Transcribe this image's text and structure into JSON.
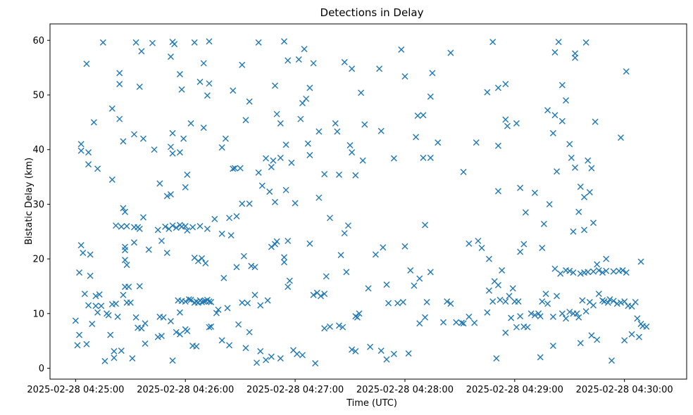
{
  "chart_data": {
    "type": "scatter",
    "title": "Detections in Delay",
    "xlabel": "Time (UTC)",
    "ylabel": "Bistatic Delay (km)",
    "marker": "x",
    "marker_color": "#1f77b4",
    "x_unit": "seconds since 2025-02-28 04:25:00",
    "xlim": [
      -14,
      334
    ],
    "ylim": [
      -2,
      63
    ],
    "xticks": [
      {
        "value": 0,
        "label": "2025-02-28 04:25:00"
      },
      {
        "value": 60,
        "label": "2025-02-28 04:26:00"
      },
      {
        "value": 120,
        "label": "2025-02-28 04:27:00"
      },
      {
        "value": 180,
        "label": "2025-02-28 04:28:00"
      },
      {
        "value": 240,
        "label": "2025-02-28 04:29:00"
      },
      {
        "value": 300,
        "label": "2025-02-28 04:30:00"
      }
    ],
    "yticks": [
      {
        "value": 0,
        "label": "0"
      },
      {
        "value": 10,
        "label": "10"
      },
      {
        "value": 20,
        "label": "20"
      },
      {
        "value": 30,
        "label": "30"
      },
      {
        "value": 40,
        "label": "40"
      },
      {
        "value": 50,
        "label": "50"
      },
      {
        "value": 60,
        "label": "60"
      }
    ],
    "grid": false,
    "points": [
      [
        15,
        59.6
      ],
      [
        33,
        59.6
      ],
      [
        42,
        59.5
      ],
      [
        53,
        59.7
      ],
      [
        65,
        59.6
      ],
      [
        73,
        59.8
      ],
      [
        100,
        59.6
      ],
      [
        114,
        59.8
      ],
      [
        228,
        59.7
      ],
      [
        264,
        59.7
      ],
      [
        279,
        59.6
      ],
      [
        54,
        59.3
      ],
      [
        36,
        58
      ],
      [
        125,
        58.4
      ],
      [
        178,
        58.3
      ],
      [
        262,
        57.8
      ],
      [
        273,
        57.6
      ],
      [
        52,
        57
      ],
      [
        6,
        55.7
      ],
      [
        70,
        55.8
      ],
      [
        91,
        55.5
      ],
      [
        116,
        56.3
      ],
      [
        122,
        56.5
      ],
      [
        130,
        55.8
      ],
      [
        147,
        56
      ],
      [
        151,
        54.8
      ],
      [
        205,
        57.7
      ],
      [
        273,
        56.8
      ],
      [
        301,
        54.3
      ],
      [
        180,
        53.4
      ],
      [
        24,
        54
      ],
      [
        57,
        53.8
      ],
      [
        24,
        52
      ],
      [
        73,
        52.1
      ],
      [
        68,
        52.4
      ],
      [
        128,
        51.3
      ],
      [
        109,
        51.7
      ],
      [
        35,
        51.5
      ],
      [
        58,
        51
      ],
      [
        86,
        50.8
      ],
      [
        156,
        50.4
      ],
      [
        166,
        54.8
      ],
      [
        195,
        54
      ],
      [
        235,
        52
      ],
      [
        225,
        50.5
      ],
      [
        231,
        51.3
      ],
      [
        266,
        51.8
      ],
      [
        268,
        49
      ],
      [
        194,
        49.7
      ],
      [
        72,
        49.9
      ],
      [
        95,
        48.8
      ],
      [
        20,
        47.5
      ],
      [
        24,
        45.6
      ],
      [
        124,
        48.5
      ],
      [
        126,
        49.3
      ],
      [
        123,
        45.6
      ],
      [
        110,
        46.5
      ],
      [
        112,
        44.8
      ],
      [
        142,
        44.8
      ],
      [
        158,
        44.6
      ],
      [
        167,
        43.4
      ],
      [
        10,
        45
      ],
      [
        3,
        41
      ],
      [
        3,
        39.8
      ],
      [
        7,
        39.5
      ],
      [
        12,
        36.5
      ],
      [
        7,
        37.3
      ],
      [
        26,
        41.5
      ],
      [
        32,
        42.8
      ],
      [
        37,
        42
      ],
      [
        43,
        40
      ],
      [
        53,
        43
      ],
      [
        59,
        42
      ],
      [
        52,
        40.5
      ],
      [
        53,
        39.3
      ],
      [
        57,
        39.5
      ],
      [
        63,
        44.8
      ],
      [
        70,
        44
      ],
      [
        82,
        42
      ],
      [
        80,
        40.4
      ],
      [
        86,
        36.5
      ],
      [
        90,
        36.6
      ],
      [
        93,
        45.4
      ],
      [
        115,
        40.9
      ],
      [
        127,
        41.1
      ],
      [
        133,
        43.3
      ],
      [
        128,
        39
      ],
      [
        143,
        43.3
      ],
      [
        150,
        40.8
      ],
      [
        151,
        39.5
      ],
      [
        104,
        38.4
      ],
      [
        107,
        36.8
      ],
      [
        108,
        38
      ],
      [
        112,
        38.5
      ],
      [
        118,
        37.6
      ],
      [
        136,
        35.5
      ],
      [
        144,
        35.4
      ],
      [
        153,
        35.3
      ],
      [
        157,
        38
      ],
      [
        174,
        38.4
      ],
      [
        186,
        42.3
      ],
      [
        187,
        46.2
      ],
      [
        190,
        46.3
      ],
      [
        198,
        41.3
      ],
      [
        219,
        41.3
      ],
      [
        231,
        40.7
      ],
      [
        235,
        45.5
      ],
      [
        236,
        44.3
      ],
      [
        241,
        44.8
      ],
      [
        258,
        47.2
      ],
      [
        262,
        46.3
      ],
      [
        266,
        45.2
      ],
      [
        261,
        43
      ],
      [
        270,
        41
      ],
      [
        271,
        38.5
      ],
      [
        273,
        36.7
      ],
      [
        280,
        38
      ],
      [
        284,
        45.1
      ],
      [
        282,
        36.6
      ],
      [
        298,
        42.2
      ],
      [
        194,
        38.5
      ],
      [
        212,
        35.9
      ],
      [
        190,
        38.5
      ],
      [
        243,
        33
      ],
      [
        231,
        32.4
      ],
      [
        251,
        32.1
      ],
      [
        259,
        30
      ],
      [
        263,
        36
      ],
      [
        246,
        28.5
      ],
      [
        276,
        33.2
      ],
      [
        281,
        32.2
      ],
      [
        278,
        31.3
      ],
      [
        275,
        28.6
      ],
      [
        272,
        25
      ],
      [
        278,
        25.3
      ],
      [
        283,
        26.6
      ],
      [
        290,
        20
      ],
      [
        285,
        19
      ],
      [
        20,
        34.5
      ],
      [
        26,
        29.3
      ],
      [
        27,
        28.6
      ],
      [
        37,
        27.6
      ],
      [
        22,
        26.1
      ],
      [
        25,
        25.9
      ],
      [
        28,
        26
      ],
      [
        32,
        25.8
      ],
      [
        35,
        25.5
      ],
      [
        45,
        25.3
      ],
      [
        49,
        25.9
      ],
      [
        53,
        26.1
      ],
      [
        55,
        25.7
      ],
      [
        57,
        26.2
      ],
      [
        60,
        26
      ],
      [
        64,
        25.8
      ],
      [
        68,
        26
      ],
      [
        72,
        25.5
      ],
      [
        80,
        24.6
      ],
      [
        85,
        24.3
      ],
      [
        88,
        27.8
      ],
      [
        91,
        30.1
      ],
      [
        95,
        30.1
      ],
      [
        100,
        35.8
      ],
      [
        102,
        33.4
      ],
      [
        106,
        32.3
      ],
      [
        109,
        30.4
      ],
      [
        115,
        32.6
      ],
      [
        120,
        30.2
      ],
      [
        133,
        31.2
      ],
      [
        139,
        27.5
      ],
      [
        149,
        26.1
      ],
      [
        147,
        24.7
      ],
      [
        60,
        33.1
      ],
      [
        61,
        35.4
      ],
      [
        52,
        31.8
      ],
      [
        46,
        33.8
      ],
      [
        50,
        31.5
      ],
      [
        40,
        21.7
      ],
      [
        47,
        23.3
      ],
      [
        50,
        21.1
      ],
      [
        51,
        25.5
      ],
      [
        58,
        25.9
      ],
      [
        61,
        25.2
      ],
      [
        65,
        20.2
      ],
      [
        67,
        19.6
      ],
      [
        69,
        20.1
      ],
      [
        71,
        19.2
      ],
      [
        76,
        27.3
      ],
      [
        84,
        27.5
      ],
      [
        87,
        36.6
      ],
      [
        3,
        22.5
      ],
      [
        4,
        21.1
      ],
      [
        8,
        20.8
      ],
      [
        2,
        17.5
      ],
      [
        8,
        16.9
      ],
      [
        5,
        13.6
      ],
      [
        7,
        11.5
      ],
      [
        11,
        11.4
      ],
      [
        12,
        10.2
      ],
      [
        13,
        13.5
      ],
      [
        14,
        11.4
      ],
      [
        17,
        10
      ],
      [
        20,
        11.7
      ],
      [
        22,
        11.8
      ],
      [
        23,
        9.4
      ],
      [
        26,
        13.4
      ],
      [
        28,
        12
      ],
      [
        30,
        12
      ],
      [
        27,
        14.9
      ],
      [
        29,
        14.9
      ],
      [
        28,
        18.9
      ],
      [
        27,
        19.8
      ],
      [
        27,
        21.6
      ],
      [
        27,
        22.2
      ],
      [
        32,
        23
      ],
      [
        34,
        25.8
      ],
      [
        35,
        15
      ],
      [
        33,
        9.3
      ],
      [
        38,
        8.2
      ],
      [
        36,
        7.3
      ],
      [
        34,
        7.4
      ],
      [
        46,
        9.4
      ],
      [
        48,
        9.3
      ],
      [
        47,
        5.9
      ],
      [
        52,
        8.6
      ],
      [
        55,
        6.6
      ],
      [
        57,
        6.2
      ],
      [
        57,
        10.2
      ],
      [
        56,
        12.4
      ],
      [
        60,
        12.2
      ],
      [
        63,
        12.5
      ],
      [
        65,
        12
      ],
      [
        66,
        12.2
      ],
      [
        67,
        12
      ],
      [
        68,
        12.4
      ],
      [
        69,
        12.1
      ],
      [
        70,
        12.2
      ],
      [
        71,
        12.3
      ],
      [
        72,
        12.5
      ],
      [
        73,
        12.2
      ],
      [
        74,
        12.1
      ],
      [
        62,
        12.6
      ],
      [
        58,
        12.3
      ],
      [
        60,
        7.1
      ],
      [
        64,
        4.1
      ],
      [
        73,
        7.5
      ],
      [
        74,
        7.6
      ],
      [
        78,
        10.7
      ],
      [
        83,
        11
      ],
      [
        91,
        12
      ],
      [
        94,
        11.9
      ],
      [
        98,
        13.4
      ],
      [
        101,
        11.5
      ],
      [
        105,
        12.4
      ],
      [
        81,
        16.5
      ],
      [
        88,
        18.5
      ],
      [
        92,
        20.5
      ],
      [
        96,
        18.7
      ],
      [
        98,
        18.5
      ],
      [
        107,
        22.2
      ],
      [
        109,
        22.7
      ],
      [
        110,
        23.2
      ],
      [
        114,
        19.4
      ],
      [
        116,
        23.3
      ],
      [
        117,
        16
      ],
      [
        116,
        14.9
      ],
      [
        114,
        20.3
      ],
      [
        128,
        22.8
      ],
      [
        130,
        13.4
      ],
      [
        132,
        13.8
      ],
      [
        134,
        13.2
      ],
      [
        136,
        13.6
      ],
      [
        137,
        16.8
      ],
      [
        145,
        20.7
      ],
      [
        148,
        17.6
      ],
      [
        154,
        9.3
      ],
      [
        155,
        10
      ],
      [
        144,
        7.8
      ],
      [
        146,
        7.5
      ],
      [
        153,
        3.1
      ],
      [
        153,
        9.5
      ],
      [
        160,
        14.6
      ],
      [
        164,
        20.8
      ],
      [
        168,
        22.1
      ],
      [
        170,
        15.3
      ],
      [
        171,
        11.9
      ],
      [
        176,
        11.9
      ],
      [
        179,
        12.1
      ],
      [
        180,
        22.3
      ],
      [
        183,
        17.9
      ],
      [
        185,
        15.1
      ],
      [
        188,
        16.4
      ],
      [
        191,
        26.2
      ],
      [
        194,
        17.6
      ],
      [
        188,
        8.2
      ],
      [
        191,
        9.3
      ],
      [
        192,
        12.1
      ],
      [
        203,
        12.2
      ],
      [
        205,
        11.8
      ],
      [
        208,
        8.4
      ],
      [
        212,
        8.2
      ],
      [
        215,
        9.4
      ],
      [
        215,
        22.8
      ],
      [
        220,
        23.3
      ],
      [
        222,
        22
      ],
      [
        226,
        14.2
      ],
      [
        229,
        15.9
      ],
      [
        231,
        15.2
      ],
      [
        233,
        17.9
      ],
      [
        235,
        12.2
      ],
      [
        237,
        13.2
      ],
      [
        239,
        14.6
      ],
      [
        240,
        12.2
      ],
      [
        242,
        12.2
      ],
      [
        243,
        9.5
      ],
      [
        245,
        7.6
      ],
      [
        247,
        7.5
      ],
      [
        249,
        10
      ],
      [
        251,
        9.7
      ],
      [
        253,
        10
      ],
      [
        254,
        9.5
      ],
      [
        255,
        12.2
      ],
      [
        257,
        13.6
      ],
      [
        258,
        11.8
      ],
      [
        261,
        9.4
      ],
      [
        263,
        13.2
      ],
      [
        266,
        10
      ],
      [
        268,
        9.1
      ],
      [
        270,
        10.3
      ],
      [
        272,
        10
      ],
      [
        274,
        10
      ],
      [
        275,
        9.3
      ],
      [
        277,
        12.4
      ],
      [
        279,
        10.4
      ],
      [
        281,
        12.1
      ],
      [
        283,
        11.5
      ],
      [
        286,
        13.6
      ],
      [
        288,
        12.4
      ],
      [
        289,
        12.2
      ],
      [
        291,
        12
      ],
      [
        292,
        12.6
      ],
      [
        294,
        12.3
      ],
      [
        296,
        11.8
      ],
      [
        298,
        12
      ],
      [
        300,
        12.2
      ],
      [
        302,
        11.4
      ],
      [
        304,
        11.3
      ],
      [
        307,
        9.1
      ],
      [
        309,
        8.1
      ],
      [
        310,
        7.7
      ],
      [
        312,
        7.6
      ],
      [
        256,
        26.4
      ],
      [
        262,
        18.2
      ],
      [
        265,
        17.3
      ],
      [
        268,
        17.9
      ],
      [
        270,
        17.8
      ],
      [
        272,
        17.5
      ],
      [
        276,
        17.3
      ],
      [
        278,
        17.5
      ],
      [
        280,
        17.6
      ],
      [
        283,
        17.7
      ],
      [
        286,
        17.9
      ],
      [
        288,
        17.5
      ],
      [
        290,
        17.8
      ],
      [
        294,
        17.7
      ],
      [
        297,
        17.8
      ],
      [
        299,
        17.9
      ],
      [
        301,
        17.5
      ],
      [
        309,
        19.5
      ],
      [
        255,
        22
      ],
      [
        245,
        22.7
      ],
      [
        243,
        21.3
      ],
      [
        238,
        9.2
      ],
      [
        226,
        20
      ],
      [
        232,
        12.5
      ],
      [
        228,
        12.2
      ],
      [
        225,
        10.2
      ],
      [
        0,
        8.7
      ],
      [
        1,
        4.2
      ],
      [
        2,
        6.1
      ],
      [
        6,
        4.4
      ],
      [
        9,
        8.1
      ],
      [
        18,
        9.7
      ],
      [
        19,
        6.1
      ],
      [
        21,
        3.1
      ],
      [
        21,
        1.9
      ],
      [
        25,
        3.2
      ],
      [
        31,
        1.8
      ],
      [
        38,
        4.5
      ],
      [
        45,
        5.7
      ],
      [
        53,
        1.4
      ],
      [
        61,
        6.8
      ],
      [
        66,
        4
      ],
      [
        77,
        10.1
      ],
      [
        80,
        5.1
      ],
      [
        84,
        4.2
      ],
      [
        89,
        8
      ],
      [
        93,
        3.7
      ],
      [
        95,
        6.6
      ],
      [
        99,
        1
      ],
      [
        101,
        3.1
      ],
      [
        104,
        1.5
      ],
      [
        107,
        2.1
      ],
      [
        112,
        1.8
      ],
      [
        119,
        3.3
      ],
      [
        121,
        2.6
      ],
      [
        124,
        2.4
      ],
      [
        131,
        0.9
      ],
      [
        136,
        7.3
      ],
      [
        139,
        7.6
      ],
      [
        151,
        3.4
      ],
      [
        161,
        3.9
      ],
      [
        167,
        3.2
      ],
      [
        170,
        1.6
      ],
      [
        174,
        2.6
      ],
      [
        182,
        2.7
      ],
      [
        201,
        8.4
      ],
      [
        211,
        8.3
      ],
      [
        218,
        8.3
      ],
      [
        230,
        1.8
      ],
      [
        235,
        6.5
      ],
      [
        241,
        7.5
      ],
      [
        254,
        2
      ],
      [
        261,
        4.1
      ],
      [
        276,
        4.6
      ],
      [
        282,
        6
      ],
      [
        285,
        5.2
      ],
      [
        293,
        1.4
      ],
      [
        300,
        5.1
      ],
      [
        304,
        6.2
      ],
      [
        308,
        5.7
      ],
      [
        306,
        12.1
      ],
      [
        16,
        1.3
      ],
      [
        11,
        13.2
      ]
    ]
  }
}
